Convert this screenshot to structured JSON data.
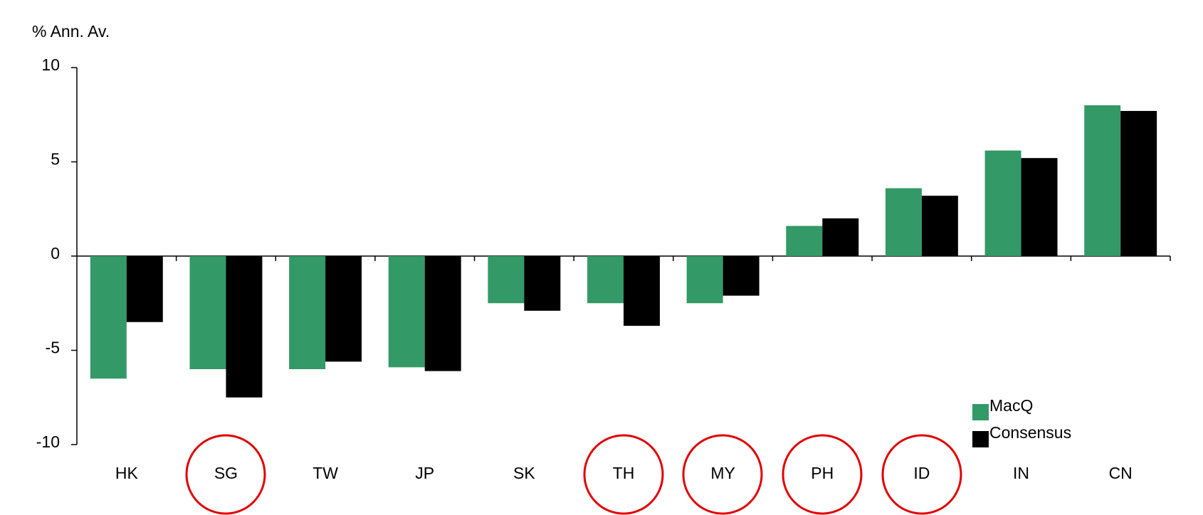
{
  "chart_data": {
    "type": "bar",
    "y_axis_label": "% Ann. Av.",
    "categories": [
      "HK",
      "SG",
      "TW",
      "JP",
      "SK",
      "TH",
      "MY",
      "PH",
      "ID",
      "IN",
      "CN"
    ],
    "series": [
      {
        "name": "MacQ",
        "color": "#339966",
        "values": [
          -6.5,
          -6.0,
          -6.0,
          -5.9,
          -2.5,
          -2.5,
          -2.5,
          1.6,
          3.6,
          5.6,
          8.0
        ]
      },
      {
        "name": "Consensus",
        "color": "#000000",
        "values": [
          -3.5,
          -7.5,
          -5.6,
          -6.1,
          -2.9,
          -3.7,
          -2.1,
          2.0,
          3.2,
          5.2,
          7.7
        ]
      }
    ],
    "ylim": [
      -10,
      10
    ],
    "yticks": [
      -10,
      -5,
      0,
      5,
      10
    ],
    "legend": "lower right"
  }
}
